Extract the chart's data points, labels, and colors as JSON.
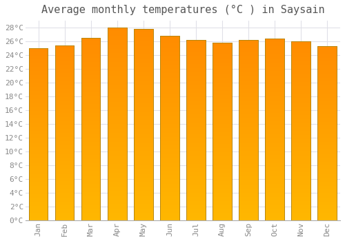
{
  "title": "Average monthly temperatures (°C ) in Saysain",
  "months": [
    "Jan",
    "Feb",
    "Mar",
    "Apr",
    "May",
    "Jun",
    "Jul",
    "Aug",
    "Sep",
    "Oct",
    "Nov",
    "Dec"
  ],
  "values": [
    25.0,
    25.4,
    26.5,
    28.0,
    27.8,
    26.8,
    26.2,
    25.8,
    26.2,
    26.4,
    26.0,
    25.3
  ],
  "ylim": [
    0,
    29
  ],
  "yticks": [
    0,
    2,
    4,
    6,
    8,
    10,
    12,
    14,
    16,
    18,
    20,
    22,
    24,
    26,
    28
  ],
  "ytick_labels": [
    "0°C",
    "2°C",
    "4°C",
    "6°C",
    "8°C",
    "10°C",
    "12°C",
    "14°C",
    "16°C",
    "18°C",
    "20°C",
    "22°C",
    "24°C",
    "26°C",
    "28°C"
  ],
  "background_color": "#ffffff",
  "grid_color": "#e0e0e8",
  "title_fontsize": 11,
  "tick_fontsize": 8,
  "bar_color_bottom": "#FFB800",
  "bar_color_top": "#FF8C00",
  "bar_edge_color": "#B8860B",
  "bar_width": 0.72
}
